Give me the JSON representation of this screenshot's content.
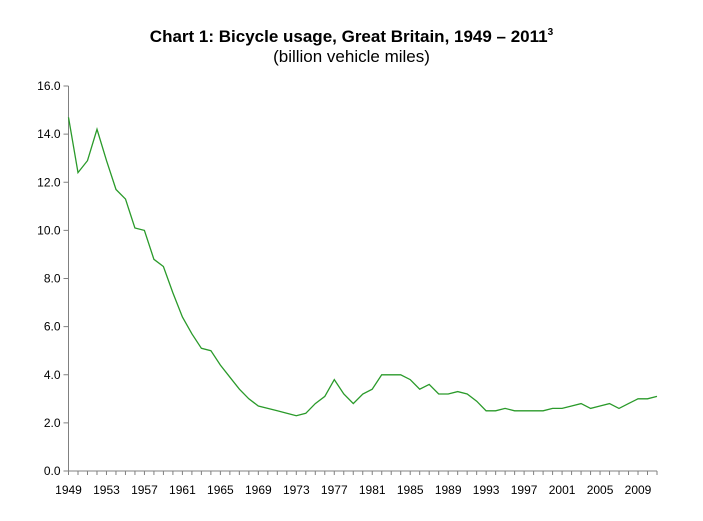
{
  "chart_data": {
    "type": "line",
    "title": "Chart 1: Bicycle usage, Great Britain, 1949 – 2011",
    "title_footnote": "3",
    "subtitle": "(billion vehicle miles)",
    "xlabel": "",
    "ylabel": "",
    "ylim": [
      0,
      16
    ],
    "yticks": [
      "0.0",
      "2.0",
      "4.0",
      "6.0",
      "8.0",
      "10.0",
      "12.0",
      "14.0",
      "16.0"
    ],
    "xtick_labels": [
      "1949",
      "1953",
      "1957",
      "1961",
      "1965",
      "1969",
      "1973",
      "1977",
      "1981",
      "1985",
      "1989",
      "1993",
      "1997",
      "2001",
      "2005",
      "2009"
    ],
    "grid": false,
    "legend": "none",
    "series": [
      {
        "name": "Bicycle usage",
        "color": "#2a9a2a",
        "x": [
          1949,
          1950,
          1951,
          1952,
          1953,
          1954,
          1955,
          1956,
          1957,
          1958,
          1959,
          1960,
          1961,
          1962,
          1963,
          1964,
          1965,
          1966,
          1967,
          1968,
          1969,
          1970,
          1971,
          1972,
          1973,
          1974,
          1975,
          1976,
          1977,
          1978,
          1979,
          1980,
          1981,
          1982,
          1983,
          1984,
          1985,
          1986,
          1987,
          1988,
          1989,
          1990,
          1991,
          1992,
          1993,
          1994,
          1995,
          1996,
          1997,
          1998,
          1999,
          2000,
          2001,
          2002,
          2003,
          2004,
          2005,
          2006,
          2007,
          2008,
          2009,
          2010,
          2011
        ],
        "values": [
          14.7,
          12.4,
          12.9,
          14.2,
          12.9,
          11.7,
          11.3,
          10.1,
          10.0,
          8.8,
          8.5,
          7.4,
          6.4,
          5.7,
          5.1,
          5.0,
          4.4,
          3.9,
          3.4,
          3.0,
          2.7,
          2.6,
          2.5,
          2.4,
          2.3,
          2.4,
          2.8,
          3.1,
          3.8,
          3.2,
          2.8,
          3.2,
          3.4,
          4.0,
          4.0,
          4.0,
          3.8,
          3.4,
          3.6,
          3.2,
          3.2,
          3.3,
          3.2,
          2.9,
          2.5,
          2.5,
          2.6,
          2.5,
          2.5,
          2.5,
          2.5,
          2.6,
          2.6,
          2.7,
          2.8,
          2.6,
          2.7,
          2.8,
          2.6,
          2.8,
          3.0,
          3.0,
          3.1
        ]
      }
    ]
  }
}
